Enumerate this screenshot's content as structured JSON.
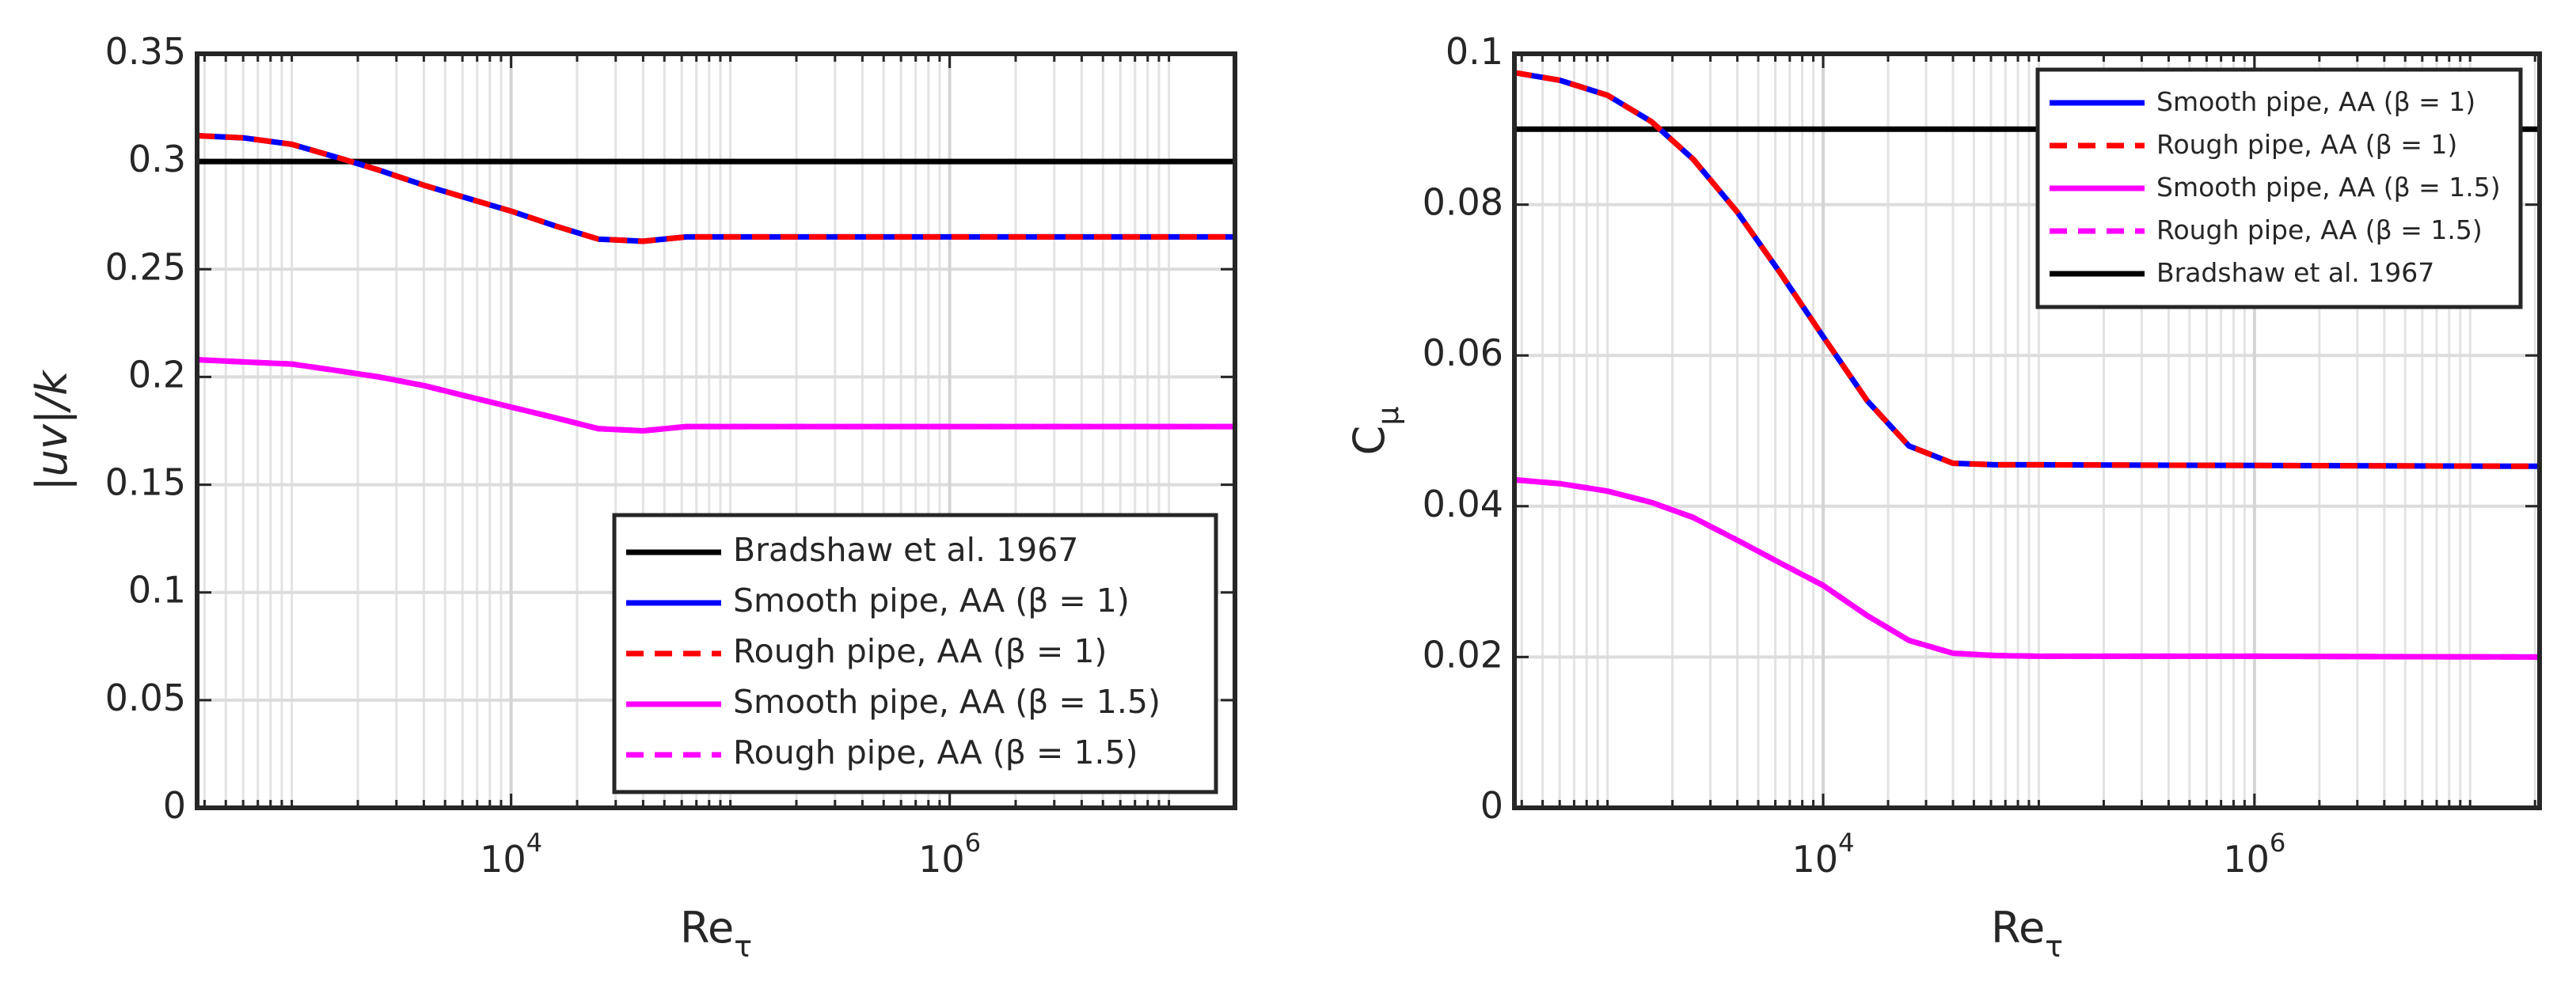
{
  "chart_data": [
    {
      "type": "line",
      "xlabel": "Re_τ",
      "ylabel": "|uv|/k",
      "xscale": "log",
      "grid": true,
      "legend": "lower right",
      "xlim": [
        370,
        20000000
      ],
      "ylim": [
        0,
        0.35
      ],
      "xticks": [
        {
          "value": 10000,
          "label": "10^4"
        },
        {
          "value": 1000000,
          "label": "10^6"
        }
      ],
      "yticks": [
        0,
        0.05,
        0.1,
        0.15,
        0.2,
        0.25,
        0.3,
        0.35
      ],
      "series": [
        {
          "name": "Bradshaw et al. 1967",
          "color": "#000000",
          "linestyle": "solid",
          "x": [
            370,
            20000000
          ],
          "values": [
            0.3,
            0.3
          ]
        },
        {
          "name": "Smooth pipe, AA (β = 1)",
          "color": "#0000ff",
          "linestyle": "solid",
          "x": [
            370,
            600,
            1000,
            1600,
            2500,
            4000,
            6300,
            10000,
            16000,
            25000,
            40000,
            63000,
            100000,
            1000000,
            20000000
          ],
          "values": [
            0.312,
            0.311,
            0.308,
            0.302,
            0.296,
            0.289,
            0.283,
            0.277,
            0.27,
            0.264,
            0.263,
            0.265,
            0.265,
            0.265,
            0.265
          ]
        },
        {
          "name": "Rough pipe, AA (β = 1)",
          "color": "#ff0000",
          "linestyle": "dashed",
          "x": [
            370,
            600,
            1000,
            1600,
            2500,
            4000,
            6300,
            10000,
            16000,
            25000,
            40000,
            63000,
            100000,
            1000000,
            20000000
          ],
          "values": [
            0.312,
            0.311,
            0.308,
            0.302,
            0.296,
            0.289,
            0.283,
            0.277,
            0.27,
            0.264,
            0.263,
            0.265,
            0.265,
            0.265,
            0.265
          ]
        },
        {
          "name": "Smooth pipe, AA (β = 1.5)",
          "color": "#ff00ff",
          "linestyle": "solid",
          "x": [
            370,
            600,
            1000,
            1600,
            2500,
            4000,
            6300,
            10000,
            16000,
            25000,
            40000,
            63000,
            100000,
            1000000,
            20000000
          ],
          "values": [
            0.208,
            0.207,
            0.206,
            0.203,
            0.2,
            0.196,
            0.191,
            0.186,
            0.181,
            0.176,
            0.175,
            0.177,
            0.177,
            0.177,
            0.177
          ]
        },
        {
          "name": "Rough pipe, AA (β = 1.5)",
          "color": "#ff00ff",
          "linestyle": "dashed",
          "x": [
            370,
            600,
            1000,
            1600,
            2500,
            4000,
            6300,
            10000,
            16000,
            25000,
            40000,
            63000,
            100000,
            1000000,
            20000000
          ],
          "values": [
            0.208,
            0.207,
            0.206,
            0.203,
            0.2,
            0.196,
            0.191,
            0.186,
            0.181,
            0.176,
            0.175,
            0.177,
            0.177,
            0.177,
            0.177
          ]
        }
      ]
    },
    {
      "type": "line",
      "xlabel": "Re_τ",
      "ylabel": "C_μ",
      "xscale": "log",
      "grid": true,
      "legend": "upper right",
      "xlim": [
        370,
        21000000
      ],
      "ylim": [
        0,
        0.1
      ],
      "xticks": [
        {
          "value": 10000,
          "label": "10^4"
        },
        {
          "value": 1000000,
          "label": "10^6"
        }
      ],
      "yticks": [
        0,
        0.02,
        0.04,
        0.06,
        0.08,
        0.1
      ],
      "series": [
        {
          "name": "Smooth pipe, AA (β = 1)",
          "color": "#0000ff",
          "linestyle": "solid",
          "x": [
            370,
            600,
            1000,
            1600,
            2500,
            4000,
            6300,
            10000,
            16000,
            25000,
            40000,
            63000,
            100000,
            1000000,
            21000000
          ],
          "values": [
            0.0975,
            0.0965,
            0.0945,
            0.091,
            0.086,
            0.079,
            0.071,
            0.0625,
            0.054,
            0.048,
            0.0457,
            0.0455,
            0.0455,
            0.0454,
            0.0453
          ]
        },
        {
          "name": "Rough pipe, AA (β = 1)",
          "color": "#ff0000",
          "linestyle": "dashed",
          "x": [
            370,
            600,
            1000,
            1600,
            2500,
            4000,
            6300,
            10000,
            16000,
            25000,
            40000,
            63000,
            100000,
            1000000,
            21000000
          ],
          "values": [
            0.0975,
            0.0965,
            0.0945,
            0.091,
            0.086,
            0.079,
            0.071,
            0.0625,
            0.054,
            0.048,
            0.0457,
            0.0455,
            0.0455,
            0.0454,
            0.0453
          ]
        },
        {
          "name": "Smooth pipe, AA (β = 1.5)",
          "color": "#ff00ff",
          "linestyle": "solid",
          "x": [
            370,
            600,
            1000,
            1600,
            2500,
            4000,
            6300,
            10000,
            16000,
            25000,
            40000,
            63000,
            100000,
            1000000,
            21000000
          ],
          "values": [
            0.0435,
            0.043,
            0.042,
            0.0405,
            0.0385,
            0.0355,
            0.0325,
            0.0295,
            0.0255,
            0.0222,
            0.0205,
            0.0202,
            0.0201,
            0.0201,
            0.02
          ]
        },
        {
          "name": "Rough pipe, AA (β = 1.5)",
          "color": "#ff00ff",
          "linestyle": "dashed",
          "x": [
            370,
            600,
            1000,
            1600,
            2500,
            4000,
            6300,
            10000,
            16000,
            25000,
            40000,
            63000,
            100000,
            1000000,
            21000000
          ],
          "values": [
            0.0435,
            0.043,
            0.042,
            0.0405,
            0.0385,
            0.0355,
            0.0325,
            0.0295,
            0.0255,
            0.0222,
            0.0205,
            0.0202,
            0.0201,
            0.0201,
            0.02
          ]
        },
        {
          "name": "Bradshaw et al. 1967",
          "color": "#000000",
          "linestyle": "solid",
          "x": [
            370,
            21000000
          ],
          "values": [
            0.09,
            0.09
          ]
        }
      ]
    }
  ]
}
